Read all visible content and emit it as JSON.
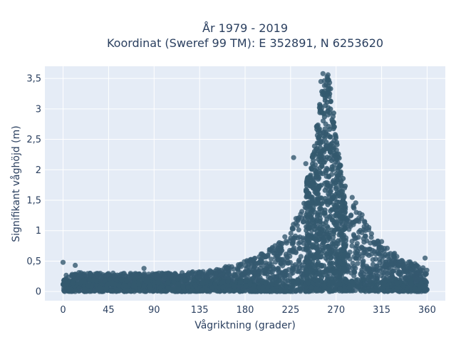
{
  "chart_data": {
    "type": "scatter",
    "title_line1": "År 1979 - 2019",
    "title_line2": "Koordinat (Sweref 99 TM): E 352891, N 6253620",
    "xlabel": "Vågriktning (grader)",
    "ylabel": "Signifikant våghöjd (m)",
    "xlim": [
      -18,
      378
    ],
    "ylim": [
      -0.15,
      3.7
    ],
    "x_ticks": [
      0,
      45,
      90,
      135,
      180,
      225,
      270,
      315,
      360
    ],
    "x_tick_labels": [
      "0",
      "45",
      "90",
      "135",
      "180",
      "225",
      "270",
      "315",
      "360"
    ],
    "y_ticks": [
      0,
      0.5,
      1,
      1.5,
      2,
      2.5,
      3,
      3.5
    ],
    "y_tick_labels": [
      "0",
      "0,5",
      "1",
      "1,5",
      "2",
      "2,5",
      "3",
      "3,5"
    ],
    "grid": true,
    "marker_color": "#34596f",
    "plot_bg": "#e5ecf6",
    "envelope": {
      "direction": [
        0,
        30,
        60,
        90,
        120,
        150,
        170,
        190,
        205,
        215,
        225,
        235,
        245,
        252,
        258,
        262,
        266,
        270,
        275,
        280,
        290,
        300,
        310,
        320,
        335,
        350,
        360
      ],
      "max_height": [
        0.32,
        0.31,
        0.3,
        0.3,
        0.32,
        0.36,
        0.45,
        0.55,
        0.72,
        0.85,
        1.0,
        1.4,
        2.1,
        2.9,
        3.5,
        3.55,
        3.25,
        2.6,
        2.0,
        1.7,
        1.45,
        1.15,
        0.85,
        0.72,
        0.55,
        0.45,
        0.38
      ]
    },
    "outliers": [
      {
        "x": 0,
        "y": 0.48
      },
      {
        "x": 12,
        "y": 0.43
      },
      {
        "x": 80,
        "y": 0.38
      },
      {
        "x": 358,
        "y": 0.55
      },
      {
        "x": 257,
        "y": 3.58
      },
      {
        "x": 262,
        "y": 3.56
      },
      {
        "x": 255,
        "y": 3.45
      },
      {
        "x": 228,
        "y": 2.2
      },
      {
        "x": 240,
        "y": 2.1
      },
      {
        "x": 278,
        "y": 1.55
      },
      {
        "x": 290,
        "y": 1.3
      },
      {
        "x": 305,
        "y": 0.95
      },
      {
        "x": 315,
        "y": 0.82
      }
    ]
  }
}
